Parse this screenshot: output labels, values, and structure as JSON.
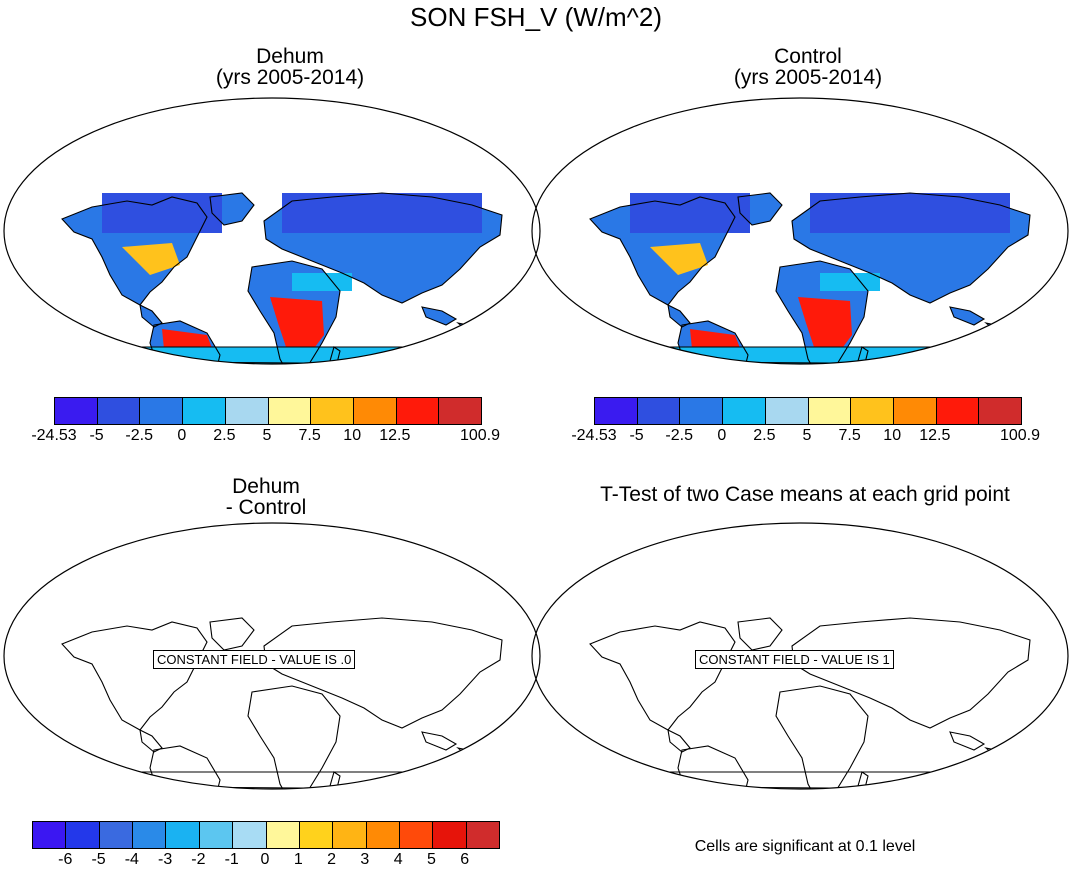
{
  "title": "SON FSH_V (W/m^2)",
  "panels": {
    "dehum": {
      "line1": "Dehum",
      "line2": "(yrs 2005-2014)"
    },
    "control": {
      "line1": "Control",
      "line2": "(yrs 2005-2014)"
    },
    "diff": {
      "line1": "Dehum",
      "line2": "- Control",
      "message": "CONSTANT FIELD - VALUE IS .0"
    },
    "ttest": {
      "line1": "T-Test of two Case means at each grid point",
      "message": "CONSTANT FIELD - VALUE IS 1"
    }
  },
  "colorbar_top": {
    "colors": [
      "#3a1bf0",
      "#2f4fe0",
      "#2a78e6",
      "#16bcf2",
      "#a8d8f0",
      "#fff79a",
      "#ffc21c",
      "#ff8a05",
      "#ff1a0a",
      "#d02c2c"
    ],
    "labels": [
      "-24.53",
      "-5",
      "-2.5",
      "0",
      "2.5",
      "5",
      "7.5",
      "10",
      "12.5",
      "100.9"
    ]
  },
  "colorbar_bottom": {
    "colors": [
      "#3b17f2",
      "#2338ea",
      "#3a6ae0",
      "#2a8ae8",
      "#1ab2f2",
      "#5cc6f0",
      "#a8dcf4",
      "#fff79a",
      "#ffd21c",
      "#ffb414",
      "#ff8a05",
      "#ff4a0a",
      "#e6140a",
      "#d02c2c"
    ],
    "labels": [
      "-6",
      "-5",
      "-4",
      "-3",
      "-2",
      "-1",
      "0",
      "1",
      "2",
      "3",
      "4",
      "5",
      "6"
    ]
  },
  "footnote": "Cells are significant at 0.1 level"
}
